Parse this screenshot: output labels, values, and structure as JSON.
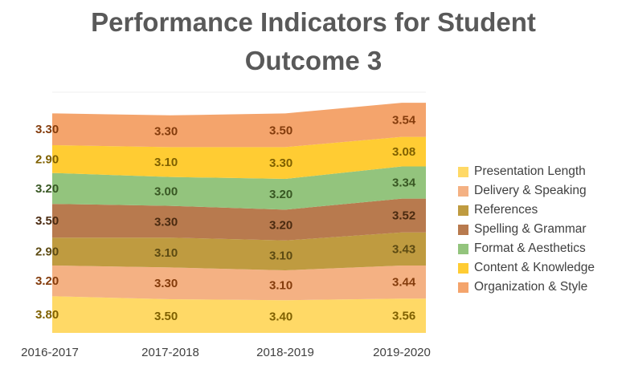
{
  "chart_data": {
    "type": "area",
    "stacked": true,
    "title": "Performance Indicators for Student Outcome 3",
    "xlabel": "",
    "ylabel": "",
    "categories": [
      "2016-2017",
      "2017-2018",
      "2018-2019",
      "2019-2020"
    ],
    "series": [
      {
        "name": "Presentation Length",
        "values": [
          3.8,
          3.5,
          3.4,
          3.56
        ],
        "labels": [
          "3.80",
          "3.50",
          "3.40",
          "3.56"
        ],
        "color": "#FFD966",
        "label_color": "#7F6000"
      },
      {
        "name": "Delivery & Speaking",
        "values": [
          3.2,
          3.3,
          3.1,
          3.44
        ],
        "labels": [
          "3.20",
          "3.30",
          "3.10",
          "3.44"
        ],
        "color": "#F4B183",
        "label_color": "#843C0C"
      },
      {
        "name": "References",
        "values": [
          2.9,
          3.1,
          3.1,
          3.43
        ],
        "labels": [
          "2.90",
          "3.10",
          "3.10",
          "3.43"
        ],
        "color": "#BF9B40",
        "label_color": "#5C4A12"
      },
      {
        "name": "Spelling & Grammar",
        "values": [
          3.5,
          3.3,
          3.2,
          3.52
        ],
        "labels": [
          "3.50",
          "3.30",
          "3.20",
          "3.52"
        ],
        "color": "#B87A4E",
        "label_color": "#4A2A10"
      },
      {
        "name": "Format & Aesthetics",
        "values": [
          3.2,
          3.0,
          3.2,
          3.34
        ],
        "labels": [
          "3.20",
          "3.00",
          "3.20",
          "3.34"
        ],
        "color": "#93C47D",
        "label_color": "#385723"
      },
      {
        "name": "Content & Knowledge",
        "values": [
          2.9,
          3.1,
          3.3,
          3.08
        ],
        "labels": [
          "2.90",
          "3.10",
          "3.30",
          "3.08"
        ],
        "color": "#FFCC33",
        "label_color": "#7F6000"
      },
      {
        "name": "Organization & Style",
        "values": [
          3.3,
          3.3,
          3.5,
          3.54
        ],
        "labels": [
          "3.30",
          "3.30",
          "3.50",
          "3.54"
        ],
        "color": "#F4A46C",
        "label_color": "#843C0C"
      }
    ],
    "legend_order": [
      "Presentation Length",
      "Delivery & Speaking",
      "References",
      "Spelling & Grammar",
      "Format & Aesthetics",
      "Content & Knowledge",
      "Organization & Style"
    ],
    "legend_position": "right",
    "grid": false,
    "ylim": [
      0,
      25
    ]
  }
}
